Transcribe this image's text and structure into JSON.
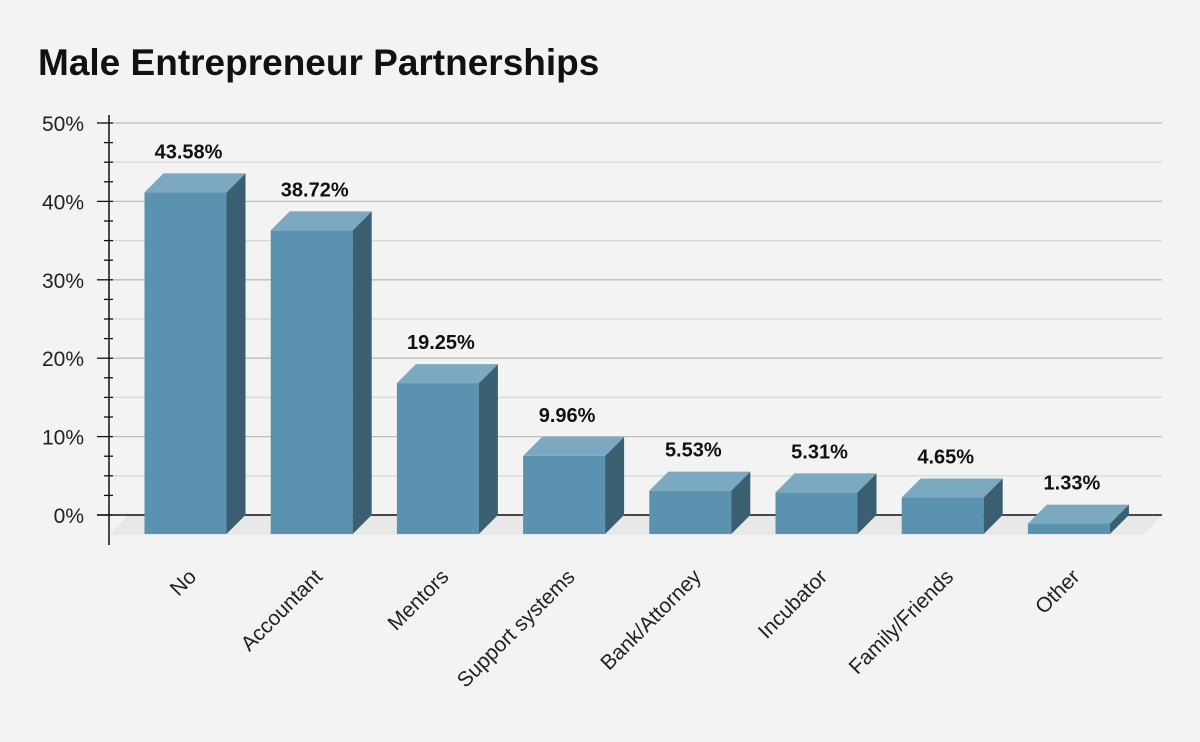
{
  "chart_data": {
    "type": "bar",
    "title": "Male Entrepreneur Partnerships",
    "xlabel": "",
    "ylabel": "",
    "categories": [
      "No",
      "Accountant",
      "Mentors",
      "Support systems",
      "Bank/Attorney",
      "Incubator",
      "Family/Friends",
      "Other"
    ],
    "values": [
      43.58,
      38.72,
      19.25,
      9.96,
      5.53,
      5.31,
      4.65,
      1.33
    ],
    "data_labels": [
      "43.58%",
      "38.72%",
      "19.25%",
      "9.96%",
      "5.53%",
      "5.31%",
      "4.65%",
      "1.33%"
    ],
    "ylim": [
      0,
      50
    ],
    "yticks": [
      0,
      10,
      20,
      30,
      40,
      50
    ],
    "ytick_labels": [
      "0%",
      "10%",
      "20%",
      "30%",
      "40%",
      "50%"
    ],
    "grid": true,
    "legend": "none",
    "style": "3d-bars",
    "colors": {
      "background": "#f3f3f3",
      "bar_front": "#5a92af",
      "bar_top": "#7aa9c1",
      "bar_side": "#3a5f71",
      "grid": "#bdbdbd",
      "floor": "#e8e8e8",
      "axis": "#111111"
    }
  }
}
